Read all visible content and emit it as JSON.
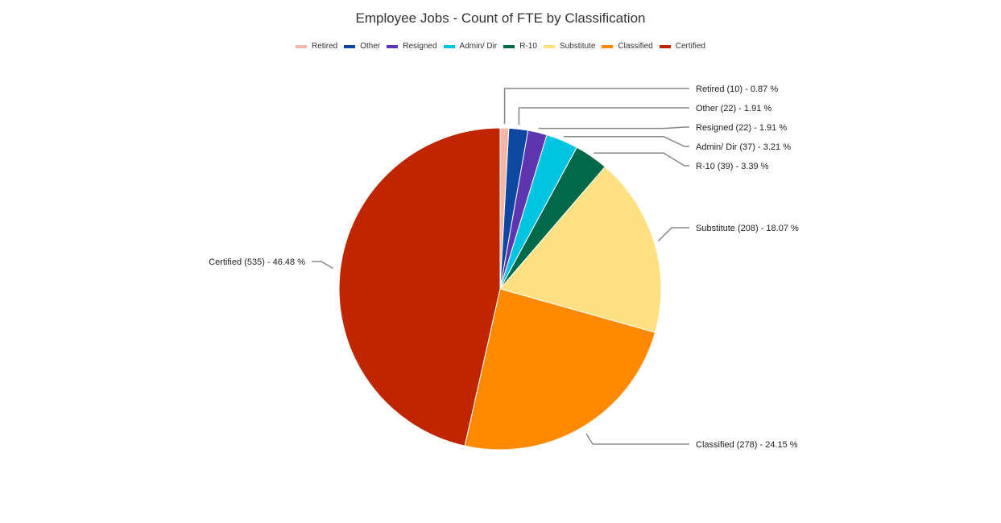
{
  "chart_data": {
    "type": "pie",
    "title": "Employee Jobs - Count of FTE by Classification",
    "legend_position": "top",
    "slices": [
      {
        "name": "Retired",
        "value": 10,
        "percent_label": "0.87 %",
        "color": "#f4b6a6"
      },
      {
        "name": "Other",
        "value": 22,
        "percent_label": "1.91 %",
        "color": "#0d47a1"
      },
      {
        "name": "Resigned",
        "value": 22,
        "percent_label": "1.91 %",
        "color": "#5e35b1"
      },
      {
        "name": "Admin/ Dir",
        "value": 37,
        "percent_label": "3.21 %",
        "color": "#00c5e2"
      },
      {
        "name": "R-10",
        "value": 39,
        "percent_label": "3.39 %",
        "color": "#00694a"
      },
      {
        "name": "Substitute",
        "value": 208,
        "percent_label": "18.07 %",
        "color": "#ffe082"
      },
      {
        "name": "Classified",
        "value": 278,
        "percent_label": "24.15 %",
        "color": "#ff8a00"
      },
      {
        "name": "Certified",
        "value": 535,
        "percent_label": "46.48 %",
        "color": "#bf2600"
      }
    ]
  }
}
